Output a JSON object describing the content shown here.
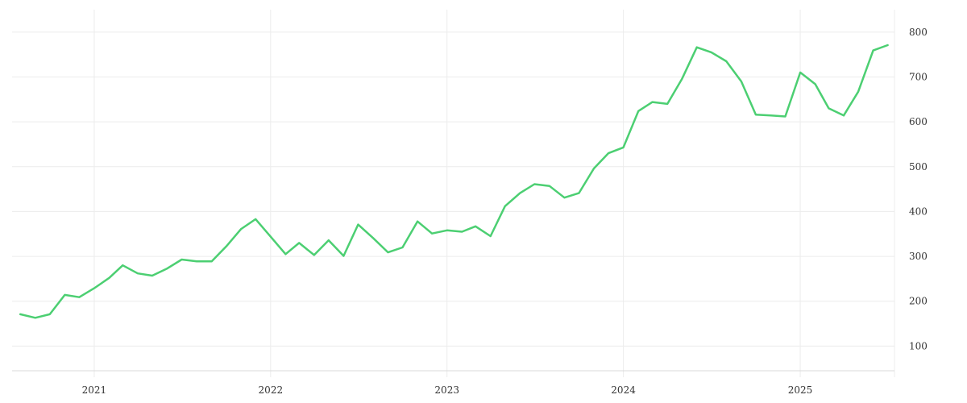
{
  "chart_data": {
    "type": "line",
    "title": "",
    "xlabel": "",
    "ylabel": "",
    "x_ticks": [
      "2021",
      "2022",
      "2023",
      "2024",
      "2025"
    ],
    "y_ticks": [
      100,
      200,
      300,
      400,
      500,
      600,
      700,
      800
    ],
    "xlim": [
      "2020-07-15",
      "2025-07-15"
    ],
    "ylim": [
      45,
      850
    ],
    "y_axis_position": "right",
    "grid": true,
    "legend": "none",
    "series": [
      {
        "color": "#4ccf72",
        "points": [
          [
            "2020-08-01",
            171
          ],
          [
            "2020-09-01",
            163
          ],
          [
            "2020-10-01",
            171
          ],
          [
            "2020-11-01",
            214
          ],
          [
            "2020-12-01",
            209
          ],
          [
            "2021-01-01",
            229
          ],
          [
            "2021-02-01",
            252
          ],
          [
            "2021-03-01",
            280
          ],
          [
            "2021-04-01",
            262
          ],
          [
            "2021-05-01",
            257
          ],
          [
            "2021-06-01",
            273
          ],
          [
            "2021-07-01",
            293
          ],
          [
            "2021-08-01",
            289
          ],
          [
            "2021-09-01",
            289
          ],
          [
            "2021-10-01",
            322
          ],
          [
            "2021-11-01",
            361
          ],
          [
            "2021-12-01",
            383
          ],
          [
            "2022-01-01",
            344
          ],
          [
            "2022-02-01",
            305
          ],
          [
            "2022-03-01",
            330
          ],
          [
            "2022-04-01",
            303
          ],
          [
            "2022-05-01",
            336
          ],
          [
            "2022-06-01",
            301
          ],
          [
            "2022-07-01",
            371
          ],
          [
            "2022-08-01",
            341
          ],
          [
            "2022-09-01",
            309
          ],
          [
            "2022-10-01",
            320
          ],
          [
            "2022-11-01",
            378
          ],
          [
            "2022-12-01",
            351
          ],
          [
            "2023-01-01",
            358
          ],
          [
            "2023-02-01",
            355
          ],
          [
            "2023-03-01",
            367
          ],
          [
            "2023-04-01",
            345
          ],
          [
            "2023-05-01",
            412
          ],
          [
            "2023-06-01",
            441
          ],
          [
            "2023-07-01",
            461
          ],
          [
            "2023-08-01",
            457
          ],
          [
            "2023-09-01",
            431
          ],
          [
            "2023-10-01",
            441
          ],
          [
            "2023-11-01",
            496
          ],
          [
            "2023-12-01",
            530
          ],
          [
            "2024-01-01",
            543
          ],
          [
            "2024-02-01",
            624
          ],
          [
            "2024-03-01",
            644
          ],
          [
            "2024-04-01",
            640
          ],
          [
            "2024-05-01",
            695
          ],
          [
            "2024-06-01",
            766
          ],
          [
            "2024-07-01",
            755
          ],
          [
            "2024-08-01",
            735
          ],
          [
            "2024-09-01",
            690
          ],
          [
            "2024-10-01",
            616
          ],
          [
            "2024-11-01",
            614
          ],
          [
            "2024-12-01",
            612
          ],
          [
            "2025-01-01",
            710
          ],
          [
            "2025-02-01",
            684
          ],
          [
            "2025-03-01",
            630
          ],
          [
            "2025-04-01",
            614
          ],
          [
            "2025-05-01",
            667
          ],
          [
            "2025-06-01",
            759
          ],
          [
            "2025-07-01",
            771
          ]
        ]
      }
    ]
  }
}
